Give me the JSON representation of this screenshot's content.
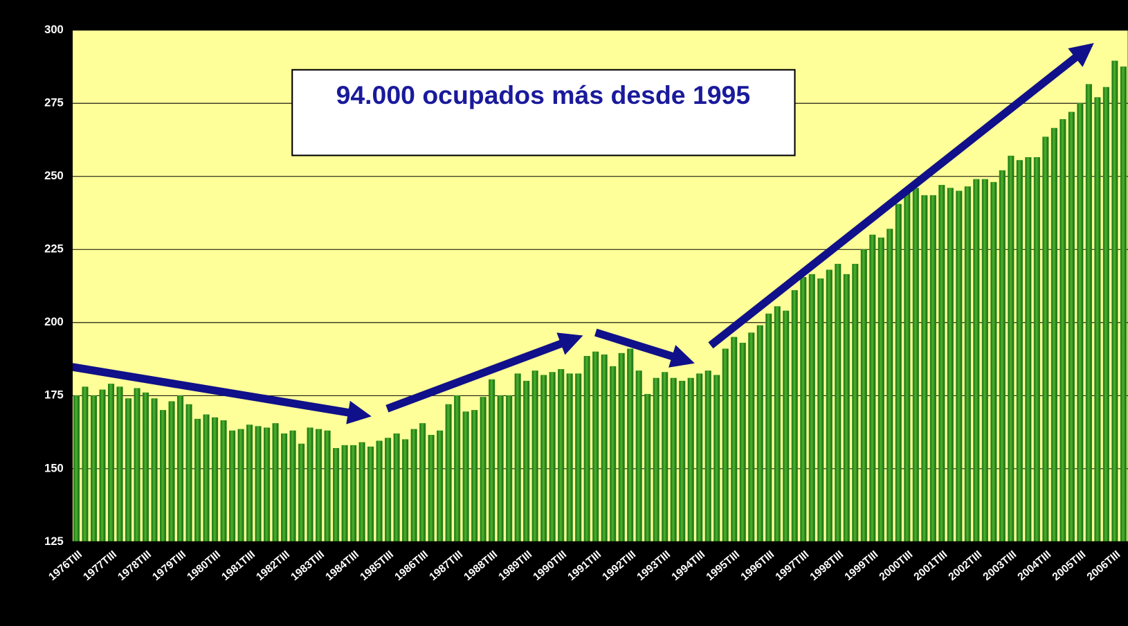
{
  "chart_data": {
    "type": "bar",
    "annotation": "94.000 ocupados más desde 1995",
    "categories": [
      "1976TIII",
      null,
      null,
      null,
      "1977TIII",
      null,
      null,
      null,
      "1978TIII",
      null,
      null,
      null,
      "1979TIII",
      null,
      null,
      null,
      "1980TIII",
      null,
      null,
      null,
      "1981TIII",
      null,
      null,
      null,
      "1982TIII",
      null,
      null,
      null,
      "1983TIII",
      null,
      null,
      null,
      "1984TIII",
      null,
      null,
      null,
      "1985TIII",
      null,
      null,
      null,
      "1986TIII",
      null,
      null,
      null,
      "1987TIII",
      null,
      null,
      null,
      "1988TIII",
      null,
      null,
      null,
      "1989TIII",
      null,
      null,
      null,
      "1990TIII",
      null,
      null,
      null,
      "1991TIII",
      null,
      null,
      null,
      "1992TIII",
      null,
      null,
      null,
      "1993TIII",
      null,
      null,
      null,
      "1994TIII",
      null,
      null,
      null,
      "1995TIII",
      null,
      null,
      null,
      "1996TIII",
      null,
      null,
      null,
      "1997TIII",
      null,
      null,
      null,
      "1998TIII",
      null,
      null,
      null,
      "1999TIII",
      null,
      null,
      null,
      "2000TIII",
      null,
      null,
      null,
      "2001TIII",
      null,
      null,
      null,
      "2002TIII",
      null,
      null,
      null,
      "2003TIII",
      null,
      null,
      null,
      "2004TIII",
      null,
      null,
      null,
      "2005TIII",
      null,
      null,
      null,
      "2006TIII",
      null
    ],
    "values": [
      175,
      178,
      175,
      177,
      179,
      178,
      174,
      177.5,
      176,
      174,
      170,
      173,
      175,
      172,
      167,
      168.5,
      167.5,
      166.5,
      163,
      163.5,
      165,
      164.5,
      164,
      165.5,
      162,
      163,
      158.5,
      164,
      163.5,
      163,
      157,
      158,
      158,
      159,
      157.5,
      159.5,
      160.5,
      162,
      160,
      163.5,
      165.5,
      161.5,
      163,
      172,
      175,
      169.5,
      170,
      174.5,
      180.5,
      175,
      175,
      182.5,
      180,
      183.5,
      182,
      183,
      184,
      182.5,
      182.5,
      188.5,
      190,
      189,
      185,
      189.5,
      191,
      183.5,
      175.5,
      181,
      183,
      181,
      180,
      181,
      182.5,
      183.5,
      182,
      191,
      195,
      193,
      196.5,
      199,
      203,
      205.5,
      204,
      211,
      215.5,
      216.5,
      215,
      218,
      220,
      216.5,
      220,
      225,
      230,
      229,
      232,
      240.5,
      246,
      246,
      243.5,
      243.5,
      247,
      246,
      245,
      246.5,
      249,
      249,
      248,
      252,
      257,
      255.5,
      256.5,
      256.5,
      263.5,
      266.5,
      269.5,
      272,
      275,
      281.5,
      277,
      280.5,
      289.5,
      287.5
    ],
    "color": "#2f8f1f",
    "ylim": [
      125,
      300
    ],
    "yticks": [
      125,
      150,
      175,
      200,
      225,
      250,
      275,
      300
    ],
    "grid": true
  }
}
